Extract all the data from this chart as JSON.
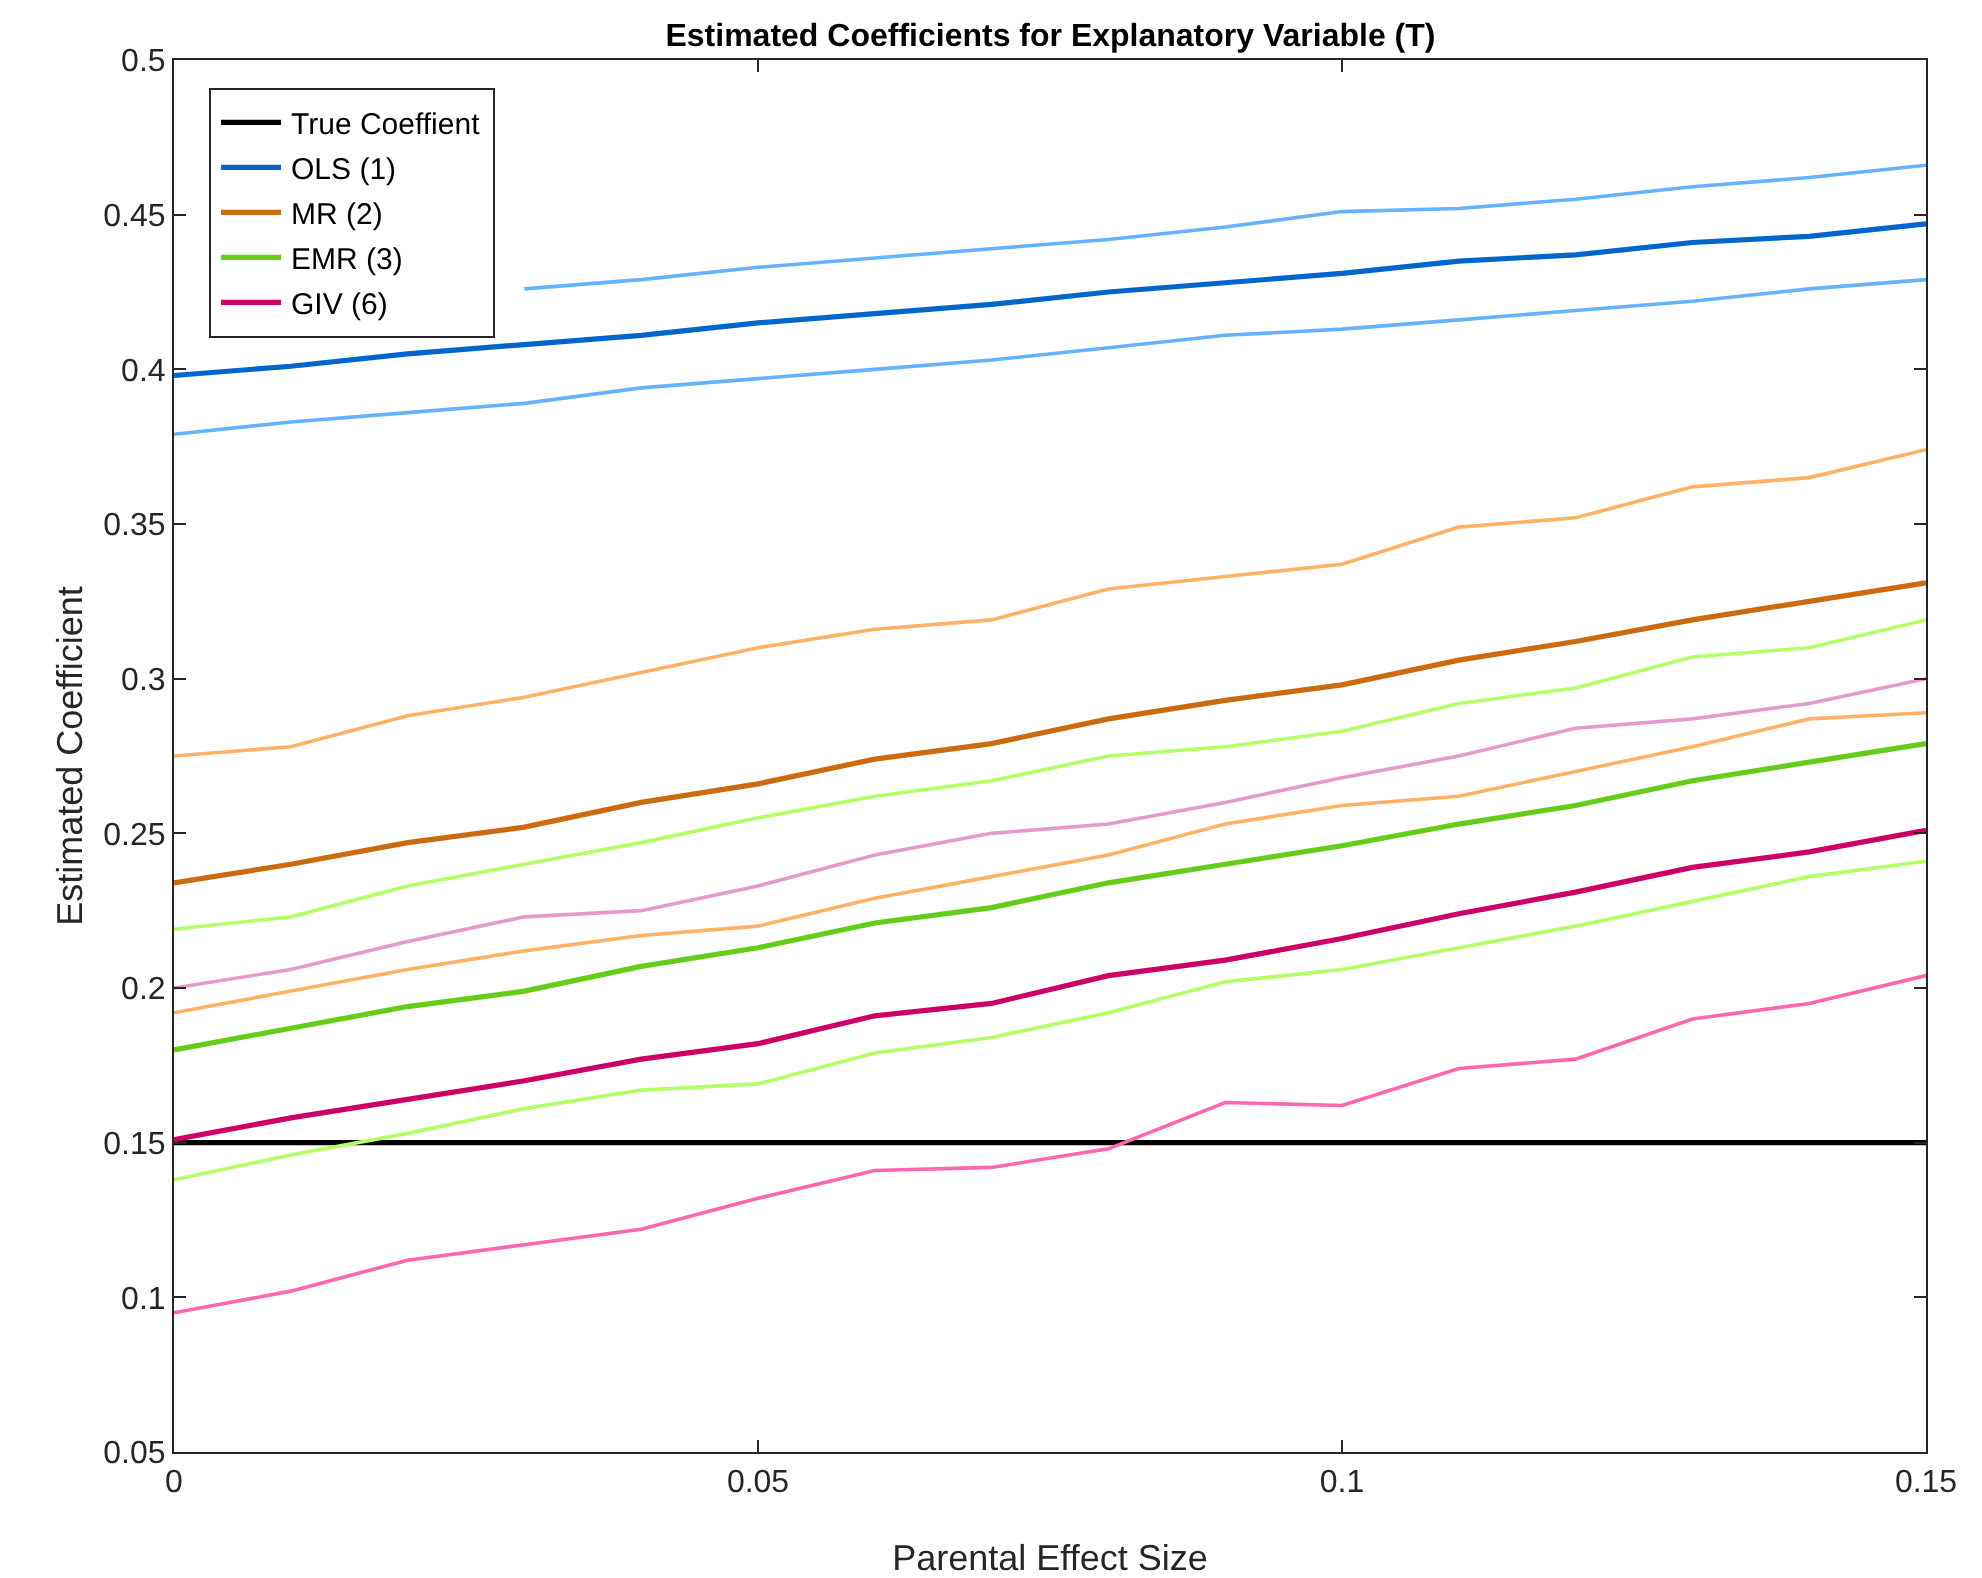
{
  "chart_data": {
    "type": "line",
    "title": "Estimated Coefficients for Explanatory Variable (T)",
    "xlabel": "Parental Effect Size",
    "ylabel": "Estimated Coefficient",
    "x": [
      0,
      0.01,
      0.02,
      0.03,
      0.04,
      0.05,
      0.06,
      0.07,
      0.08,
      0.09,
      0.1,
      0.11,
      0.12,
      0.13,
      0.14,
      0.15
    ],
    "series": [
      {
        "name": "True Coeffient",
        "color": "#000000",
        "values": [
          0.15,
          0.15,
          0.15,
          0.15,
          0.15,
          0.15,
          0.15,
          0.15,
          0.15,
          0.15,
          0.15,
          0.15,
          0.15,
          0.15,
          0.15,
          0.15
        ]
      },
      {
        "name": "OLS (1)",
        "color": "#0066cc",
        "values": [
          0.398,
          0.401,
          0.405,
          0.408,
          0.411,
          0.415,
          0.418,
          0.421,
          0.425,
          0.428,
          0.431,
          0.435,
          0.437,
          0.441,
          0.443,
          0.447
        ]
      },
      {
        "name": "MR (2)",
        "color": "#cc6a10",
        "values": [
          0.234,
          0.24,
          0.247,
          0.252,
          0.26,
          0.266,
          0.274,
          0.279,
          0.287,
          0.293,
          0.298,
          0.306,
          0.312,
          0.319,
          0.325,
          0.331
        ]
      },
      {
        "name": "EMR (3)",
        "color": "#66cc1a",
        "values": [
          0.18,
          0.187,
          0.194,
          0.199,
          0.207,
          0.213,
          0.221,
          0.226,
          0.234,
          0.24,
          0.246,
          0.253,
          0.259,
          0.267,
          0.273,
          0.279
        ]
      },
      {
        "name": "GIV (6)",
        "color": "#cc0066",
        "values": [
          0.151,
          0.158,
          0.164,
          0.17,
          0.177,
          0.182,
          0.191,
          0.195,
          0.204,
          0.209,
          0.216,
          0.224,
          0.231,
          0.239,
          0.244,
          0.251
        ]
      },
      {
        "color": "#66b2ff",
        "values": [
          null,
          null,
          null,
          0.426,
          0.429,
          0.433,
          0.436,
          0.439,
          0.442,
          0.446,
          0.451,
          0.452,
          0.455,
          0.459,
          0.462,
          0.466
        ]
      },
      {
        "color": "#66b2ff",
        "values": [
          0.379,
          0.383,
          0.386,
          0.389,
          0.394,
          0.397,
          0.4,
          0.403,
          0.407,
          0.411,
          0.413,
          0.416,
          0.419,
          0.422,
          0.426,
          0.429
        ]
      },
      {
        "color": "#ffb266",
        "values": [
          0.275,
          0.278,
          0.288,
          0.294,
          0.302,
          0.31,
          0.316,
          0.319,
          0.329,
          0.333,
          0.337,
          0.349,
          0.352,
          0.362,
          0.365,
          0.374
        ]
      },
      {
        "color": "#ffb266",
        "values": [
          0.192,
          0.199,
          0.206,
          0.212,
          0.217,
          0.22,
          0.229,
          0.236,
          0.243,
          0.253,
          0.259,
          0.262,
          0.27,
          0.278,
          0.287,
          0.289
        ]
      },
      {
        "color": "#b2ff66",
        "values": [
          0.219,
          0.223,
          0.233,
          0.24,
          0.247,
          0.255,
          0.262,
          0.267,
          0.275,
          0.278,
          0.283,
          0.292,
          0.297,
          0.307,
          0.31,
          0.319
        ]
      },
      {
        "color": "#b2ff66",
        "values": [
          0.138,
          0.146,
          0.153,
          0.161,
          0.167,
          0.169,
          0.179,
          0.184,
          0.192,
          0.202,
          0.206,
          0.213,
          0.22,
          0.228,
          0.236,
          0.241
        ]
      },
      {
        "color": "#e699cc",
        "values": [
          0.2,
          0.206,
          0.215,
          0.223,
          0.225,
          0.233,
          0.243,
          0.25,
          0.253,
          0.26,
          0.268,
          0.275,
          0.284,
          0.287,
          0.292,
          0.3
        ]
      },
      {
        "color": "#ff66b2",
        "values": [
          0.095,
          0.102,
          0.112,
          0.117,
          0.122,
          0.132,
          0.141,
          0.142,
          0.148,
          0.163,
          0.162,
          0.174,
          0.177,
          0.19,
          0.195,
          0.204
        ]
      }
    ],
    "xlim": [
      0,
      0.15
    ],
    "xticks": [
      0,
      0.05,
      0.1,
      0.15
    ],
    "ylim": [
      0.05,
      0.5
    ],
    "yticks": [
      0.05,
      0.1,
      0.15,
      0.2,
      0.25,
      0.3,
      0.35,
      0.4,
      0.45,
      0.5
    ],
    "grid": false,
    "legend": "top left"
  }
}
